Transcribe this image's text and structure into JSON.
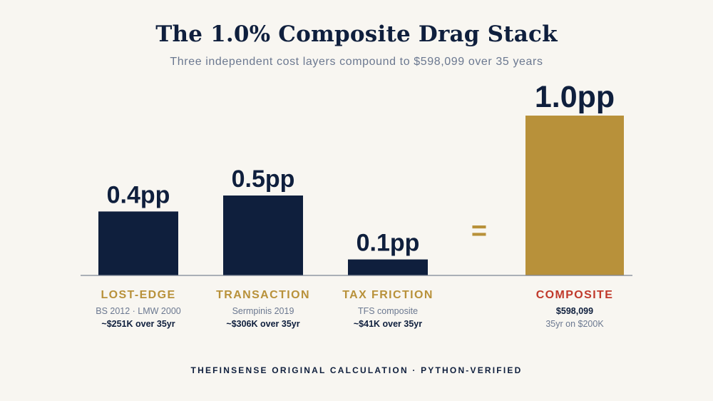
{
  "header": {
    "title": "The 1.0% Composite Drag Stack",
    "subtitle": "Three independent cost layers compound to $598,099 over 35 years"
  },
  "colors": {
    "navy": "#0f1f3d",
    "gold": "#b8913a",
    "gold_label": "#b8913a",
    "red": "#c0392b",
    "muted": "#6b7890",
    "background": "#f8f6f1"
  },
  "chart_data": {
    "type": "bar",
    "title": "The 1.0% Composite Drag Stack",
    "subtitle": "Three independent cost layers compound to $598,099 over 35 years",
    "unit": "pp",
    "ylim": [
      0,
      1.0
    ],
    "grid": false,
    "legend": "none",
    "categories": [
      "LOST-EDGE",
      "TRANSACTION",
      "TAX FRICTION",
      "COMPOSITE"
    ],
    "values": [
      0.4,
      0.5,
      0.1,
      1.0
    ],
    "value_labels": [
      "0.4pp",
      "0.5pp",
      "0.1pp",
      "1.0pp"
    ],
    "equals_symbol": "=",
    "bars": [
      {
        "category": "LOST-EDGE",
        "value": 0.4,
        "value_label": "0.4pp",
        "source": "BS 2012 · LMW 2000",
        "impact": "~$251K over 35yr",
        "kind": "component"
      },
      {
        "category": "TRANSACTION",
        "value": 0.5,
        "value_label": "0.5pp",
        "source": "Sermpinis 2019",
        "impact": "~$306K over 35yr",
        "kind": "component"
      },
      {
        "category": "TAX FRICTION",
        "value": 0.1,
        "value_label": "0.1pp",
        "source": "TFS composite",
        "impact": "~$41K over 35yr",
        "kind": "component"
      },
      {
        "category": "COMPOSITE",
        "value": 1.0,
        "value_label": "1.0pp",
        "source": "$598,099",
        "impact": "35yr on $200K",
        "kind": "total"
      }
    ]
  },
  "footer": {
    "text": "THEFINSENSE ORIGINAL CALCULATION · PYTHON-VERIFIED"
  }
}
